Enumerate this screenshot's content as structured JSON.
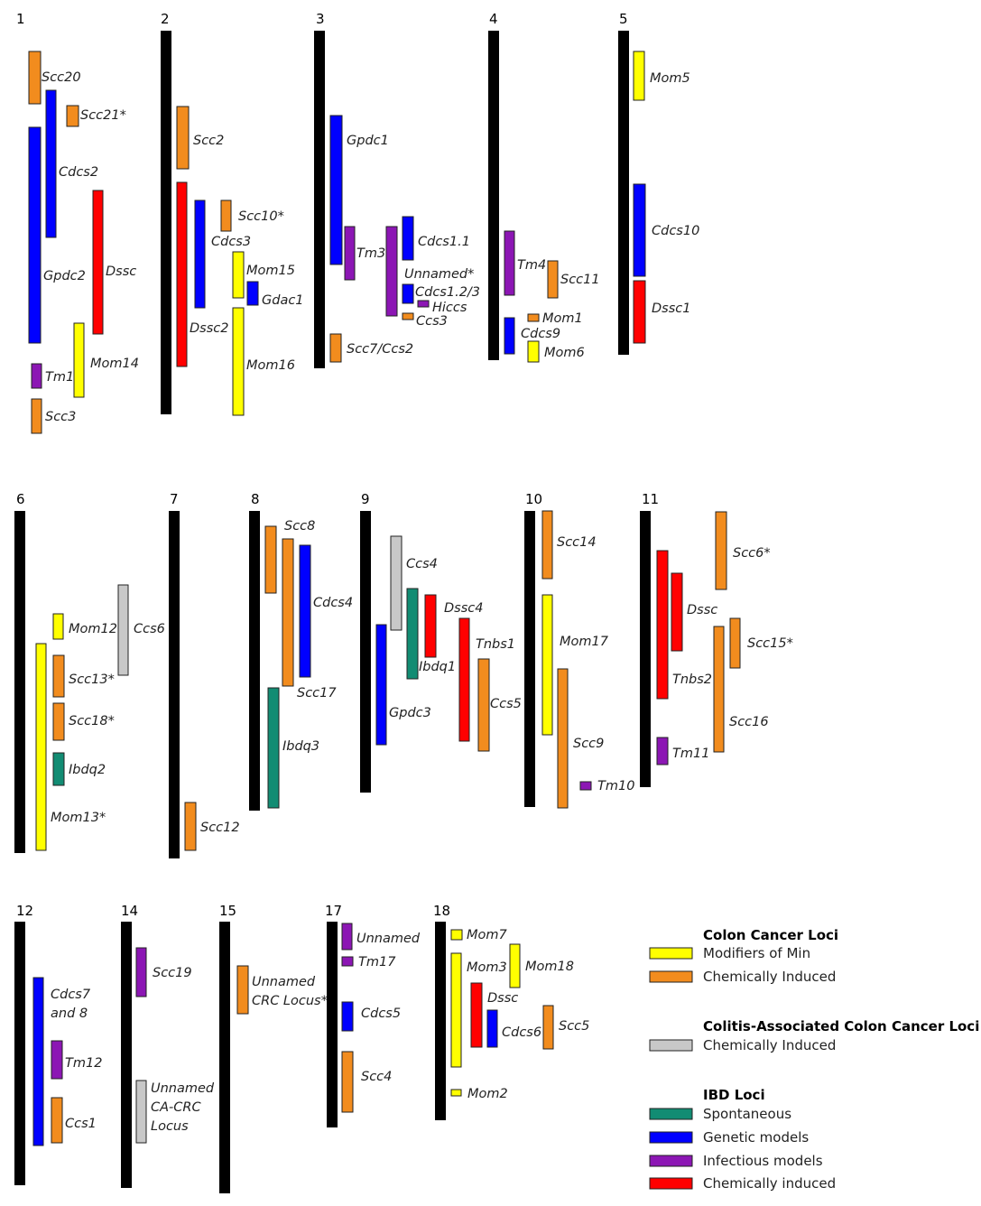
{
  "colors": {
    "modifiers_of_min": "#FFFF00",
    "cc_chemical": "#F28C1E",
    "cac_chemical": "#C8C8C8",
    "ibd_spontaneous": "#128C73",
    "ibd_genetic": "#0000FF",
    "ibd_infectious": "#8C16B4",
    "ibd_chemical": "#FF0000",
    "chromosome": "#000000"
  },
  "chromosomes": [
    {
      "number": "1",
      "loci": [
        {
          "label": "Scc20",
          "category": "cc_chemical"
        },
        {
          "label": "Scc21*",
          "category": "cc_chemical"
        },
        {
          "label": "Cdcs2",
          "category": "ibd_genetic"
        },
        {
          "label": "Gpdc2",
          "category": "ibd_genetic"
        },
        {
          "label": "Dssc",
          "category": "ibd_chemical"
        },
        {
          "label": "Mom14",
          "category": "modifiers_of_min"
        },
        {
          "label": "Tm1",
          "category": "ibd_infectious"
        },
        {
          "label": "Scc3",
          "category": "cc_chemical"
        }
      ]
    },
    {
      "number": "2",
      "loci": [
        {
          "label": "Scc2",
          "category": "cc_chemical"
        },
        {
          "label": "Dssc2",
          "category": "ibd_chemical"
        },
        {
          "label": "Cdcs3",
          "category": "ibd_genetic"
        },
        {
          "label": "Scc10*",
          "category": "cc_chemical"
        },
        {
          "label": "Mom15",
          "category": "modifiers_of_min"
        },
        {
          "label": "Gdac1",
          "category": "ibd_genetic"
        },
        {
          "label": "Mom16",
          "category": "modifiers_of_min"
        }
      ]
    },
    {
      "number": "3",
      "loci": [
        {
          "label": "Gpdc1",
          "category": "ibd_genetic"
        },
        {
          "label": "Tm3",
          "category": "ibd_infectious"
        },
        {
          "label": "Scc7/Ccs2",
          "category": "cc_chemical"
        },
        {
          "label": "Unnamed*",
          "category": "ibd_infectious"
        },
        {
          "label": "Cdcs1.1",
          "category": "ibd_genetic"
        },
        {
          "label": "Cdcs1.2/3",
          "category": "ibd_genetic"
        },
        {
          "label": "Hiccs",
          "category": "ibd_infectious"
        },
        {
          "label": "Ccs3",
          "category": "cc_chemical"
        }
      ]
    },
    {
      "number": "4",
      "loci": [
        {
          "label": "Tm4",
          "category": "ibd_infectious"
        },
        {
          "label": "Cdcs9",
          "category": "ibd_genetic"
        },
        {
          "label": "Scc11",
          "category": "cc_chemical"
        },
        {
          "label": "Mom1",
          "category": "cc_chemical"
        },
        {
          "label": "Mom6",
          "category": "modifiers_of_min"
        }
      ]
    },
    {
      "number": "5",
      "loci": [
        {
          "label": "Mom5",
          "category": "modifiers_of_min"
        },
        {
          "label": "Cdcs10",
          "category": "ibd_genetic"
        },
        {
          "label": "Dssc1",
          "category": "ibd_chemical"
        }
      ]
    },
    {
      "number": "6",
      "loci": [
        {
          "label": "Mom12",
          "category": "modifiers_of_min"
        },
        {
          "label": "Mom13*",
          "category": "modifiers_of_min"
        },
        {
          "label": "Scc13*",
          "category": "cc_chemical"
        },
        {
          "label": "Scc18*",
          "category": "cc_chemical"
        },
        {
          "label": "Ibdq2",
          "category": "ibd_spontaneous"
        },
        {
          "label": "Ccs6",
          "category": "cac_chemical"
        }
      ]
    },
    {
      "number": "7",
      "loci": [
        {
          "label": "Scc12",
          "category": "cc_chemical"
        }
      ]
    },
    {
      "number": "8",
      "loci": [
        {
          "label": "Scc8",
          "category": "cc_chemical"
        },
        {
          "label": "Scc17",
          "category": "cc_chemical"
        },
        {
          "label": "Cdcs4",
          "category": "ibd_genetic"
        },
        {
          "label": "Ibdq3",
          "category": "ibd_spontaneous"
        }
      ]
    },
    {
      "number": "9",
      "loci": [
        {
          "label": "Gpdc3",
          "category": "ibd_genetic"
        },
        {
          "label": "Ccs4",
          "category": "cac_chemical"
        },
        {
          "label": "Ibdq1",
          "category": "ibd_spontaneous"
        },
        {
          "label": "Dssc4",
          "category": "ibd_chemical"
        },
        {
          "label": "Tnbs1",
          "category": "ibd_chemical"
        },
        {
          "label": "Ccs5",
          "category": "cc_chemical"
        }
      ]
    },
    {
      "number": "10",
      "loci": [
        {
          "label": "Scc14",
          "category": "cc_chemical"
        },
        {
          "label": "Mom17",
          "category": "modifiers_of_min"
        },
        {
          "label": "Scc9",
          "category": "cc_chemical"
        },
        {
          "label": "Tm10",
          "category": "ibd_infectious"
        }
      ]
    },
    {
      "number": "11",
      "loci": [
        {
          "label": "Tnbs2",
          "category": "ibd_chemical"
        },
        {
          "label": "Dssc",
          "category": "ibd_chemical"
        },
        {
          "label": "Tm11",
          "category": "ibd_infectious"
        },
        {
          "label": "Scc6*",
          "category": "cc_chemical"
        },
        {
          "label": "Scc16",
          "category": "cc_chemical"
        },
        {
          "label": "Scc15*",
          "category": "cc_chemical"
        }
      ]
    },
    {
      "number": "12",
      "loci": [
        {
          "label": "Cdcs7 and 8",
          "category": "ibd_genetic"
        },
        {
          "label": "Tm12",
          "category": "ibd_infectious"
        },
        {
          "label": "Ccs1",
          "category": "cc_chemical"
        }
      ]
    },
    {
      "number": "14",
      "loci": [
        {
          "label": "Scc19",
          "category": "ibd_infectious"
        },
        {
          "label": "Unnamed CA-CRC Locus",
          "category": "cac_chemical"
        }
      ]
    },
    {
      "number": "15",
      "loci": [
        {
          "label": "Unnamed CRC Locus*",
          "category": "cc_chemical"
        }
      ]
    },
    {
      "number": "17",
      "loci": [
        {
          "label": "Unnamed",
          "category": "ibd_infectious"
        },
        {
          "label": "Tm17",
          "category": "ibd_infectious"
        },
        {
          "label": "Cdcs5",
          "category": "ibd_genetic"
        },
        {
          "label": "Scc4",
          "category": "cc_chemical"
        }
      ]
    },
    {
      "number": "18",
      "loci": [
        {
          "label": "Mom7",
          "category": "modifiers_of_min"
        },
        {
          "label": "Mom3",
          "category": "modifiers_of_min"
        },
        {
          "label": "Mom2",
          "category": "modifiers_of_min"
        },
        {
          "label": "Dssc",
          "category": "ibd_chemical"
        },
        {
          "label": "Mom18",
          "category": "modifiers_of_min"
        },
        {
          "label": "Cdcs6",
          "category": "ibd_genetic"
        },
        {
          "label": "Scc5",
          "category": "cc_chemical"
        }
      ]
    }
  ],
  "legend": {
    "groups": [
      {
        "title": "Colon Cancer Loci",
        "items": [
          {
            "label": "Modifiers of Min",
            "category": "modifiers_of_min"
          },
          {
            "label": "Chemically Induced",
            "category": "cc_chemical"
          }
        ]
      },
      {
        "title": "Colitis-Associated Colon Cancer Loci",
        "items": [
          {
            "label": "Chemically Induced",
            "category": "cac_chemical"
          }
        ]
      },
      {
        "title": "IBD Loci",
        "items": [
          {
            "label": "Spontaneous",
            "category": "ibd_spontaneous"
          },
          {
            "label": "Genetic models",
            "category": "ibd_genetic"
          },
          {
            "label": "Infectious models",
            "category": "ibd_infectious"
          },
          {
            "label": "Chemically induced",
            "category": "ibd_chemical"
          }
        ]
      }
    ]
  }
}
